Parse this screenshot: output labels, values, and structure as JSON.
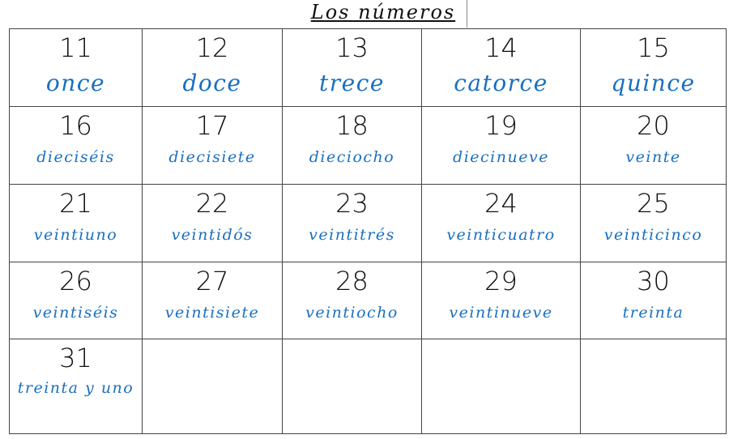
{
  "title": "Los números",
  "colors": {
    "number": "#111111",
    "word": "#1a6fc0"
  },
  "rows": [
    [
      {
        "n": "11",
        "w": "once"
      },
      {
        "n": "12",
        "w": "doce"
      },
      {
        "n": "13",
        "w": "trece"
      },
      {
        "n": "14",
        "w": "catorce"
      },
      {
        "n": "15",
        "w": "quince"
      }
    ],
    [
      {
        "n": "16",
        "w": "dieciséis"
      },
      {
        "n": "17",
        "w": "diecisiete"
      },
      {
        "n": "18",
        "w": "dieciocho"
      },
      {
        "n": "19",
        "w": "diecinueve"
      },
      {
        "n": "20",
        "w": "veinte"
      }
    ],
    [
      {
        "n": "21",
        "w": "veintiuno"
      },
      {
        "n": "22",
        "w": "veintidós"
      },
      {
        "n": "23",
        "w": "veintitrés"
      },
      {
        "n": "24",
        "w": "veinticuatro"
      },
      {
        "n": "25",
        "w": "veinticinco"
      }
    ],
    [
      {
        "n": "26",
        "w": "veintiséis"
      },
      {
        "n": "27",
        "w": "veintisiete"
      },
      {
        "n": "28",
        "w": "veintiocho"
      },
      {
        "n": "29",
        "w": "veintinueve"
      },
      {
        "n": "30",
        "w": "treinta"
      }
    ],
    [
      {
        "n": "31",
        "w": "treinta y uno"
      },
      {
        "n": "",
        "w": ""
      },
      {
        "n": "",
        "w": ""
      },
      {
        "n": "",
        "w": ""
      },
      {
        "n": "",
        "w": ""
      }
    ]
  ]
}
